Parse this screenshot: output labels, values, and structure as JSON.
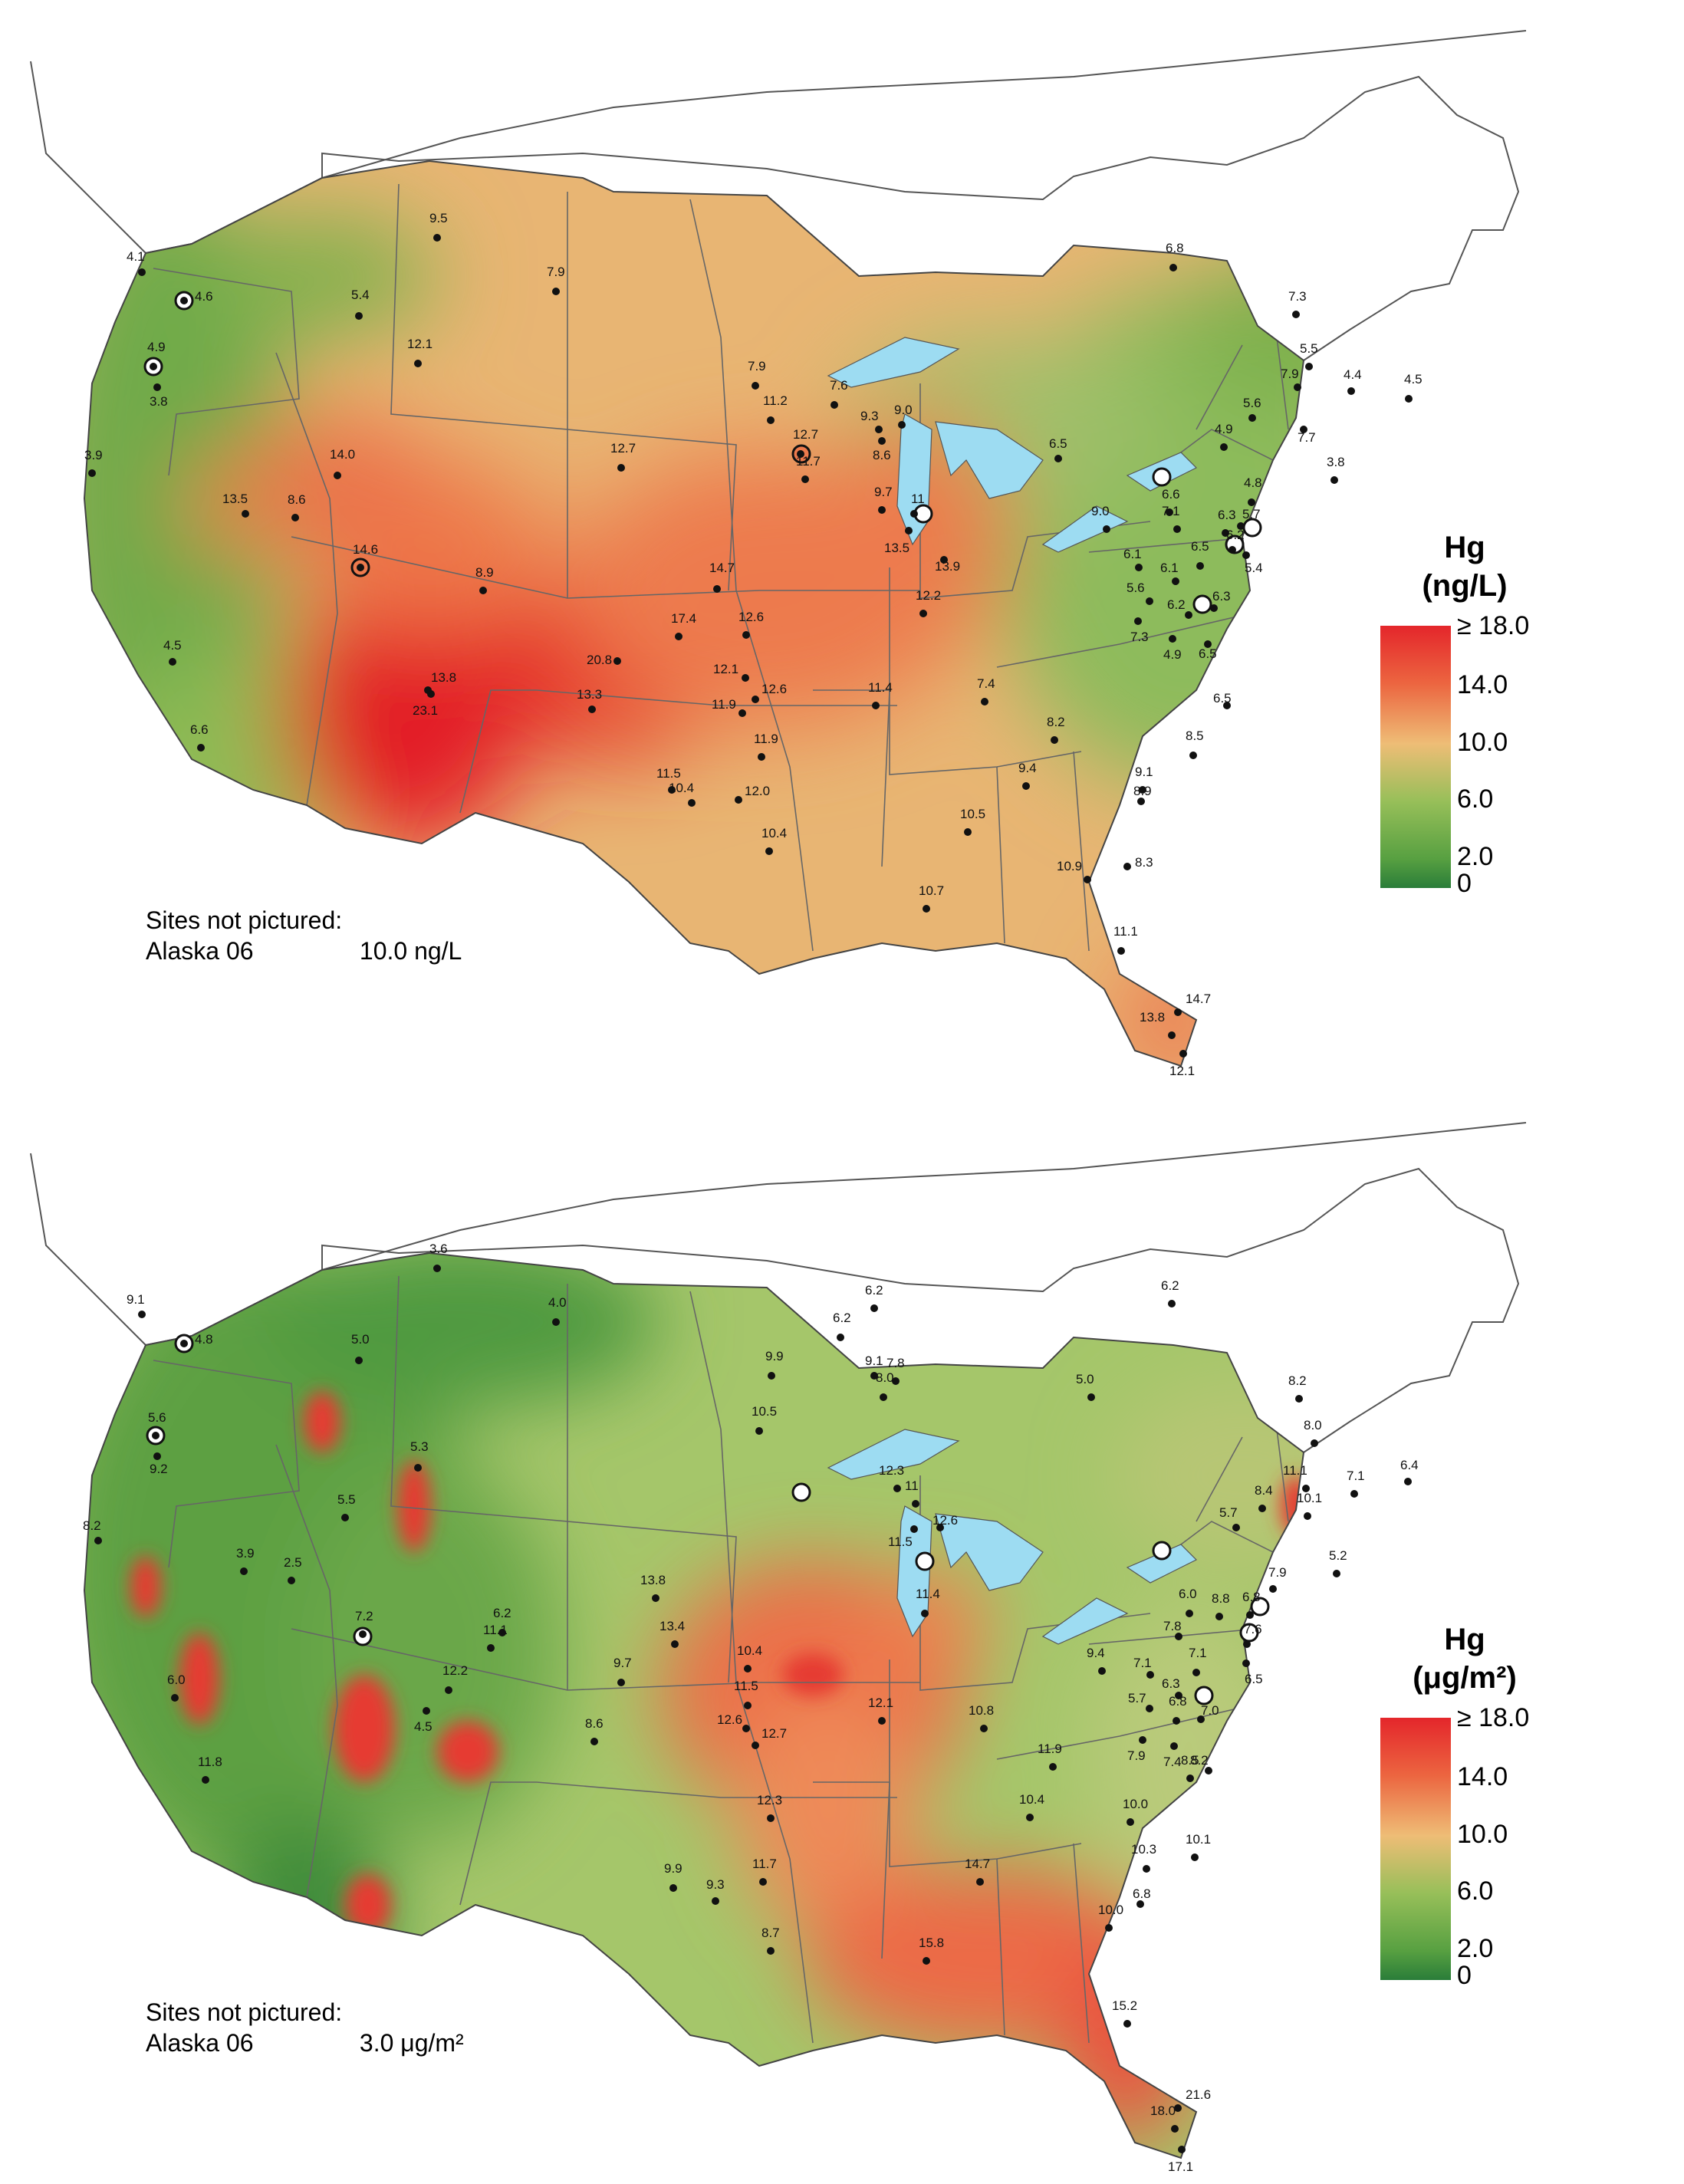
{
  "maps": [
    {
      "id": "concentration",
      "legend": {
        "title_line1": "Hg",
        "title_line2": "(ng/L)",
        "ticks": [
          "≥ 18.0",
          "14.0",
          "10.0",
          "6.0",
          "2.0",
          "0"
        ]
      },
      "not_pictured": {
        "heading": "Sites not pictured:",
        "site": "Alaska 06",
        "value": "10.0 ng/L"
      },
      "labels": [
        "4.1",
        "4.6",
        "4.9",
        "3.8",
        "3.9",
        "5.4",
        "9.5",
        "7.9",
        "12.1",
        "14.0",
        "13.5",
        "8.6",
        "14.6",
        "8.9",
        "12.7",
        "4.5",
        "6.6",
        "13.8",
        "23.1",
        "13.3",
        "20.8",
        "17.4",
        "14.7",
        "12.6",
        "12.1",
        "12.6",
        "11.9",
        "11.9",
        "11.5",
        "10.4",
        "12.0",
        "10.4",
        "7.9",
        "11.2",
        "12.7",
        "11.7",
        "7.6",
        "9.3",
        "9.0",
        "8.6",
        "9.7",
        "11",
        "13.5",
        "13.9",
        "12.2",
        "11.4",
        "7.4",
        "10.5",
        "9.4",
        "10.7",
        "8.2",
        "9.1",
        "8.9",
        "8.5",
        "8.3",
        "10.9",
        "11.1",
        "13.8",
        "14.7",
        "12.1",
        "6.5",
        "9.0",
        "6.8",
        "7.3",
        "5.5",
        "7.9",
        "4.4",
        "4.5",
        "5.6",
        "7.7",
        "4.9",
        "3.8",
        "4.8",
        "6.6",
        "7.1",
        "6.3",
        "5.7",
        "6.1",
        "6.5",
        "6.2",
        "5.4",
        "6.1",
        "5.6",
        "6.2",
        "6.3",
        "7.3",
        "4.9",
        "6.5",
        "6.5"
      ]
    },
    {
      "id": "deposition",
      "legend": {
        "title_line1": "Hg",
        "title_line2": "(μg/m²)",
        "ticks": [
          "≥ 18.0",
          "14.0",
          "10.0",
          "6.0",
          "2.0",
          "0"
        ]
      },
      "not_pictured": {
        "heading": "Sites not pictured:",
        "site": "Alaska 06",
        "value": "3.0 μg/m²"
      },
      "labels": [
        "9.1",
        "4.8",
        "5.6",
        "9.2",
        "8.2",
        "5.0",
        "3.6",
        "4.0",
        "5.3",
        "5.5",
        "3.9",
        "2.5",
        "7.2",
        "6.2",
        "6.0",
        "11.8",
        "11.1",
        "12.2",
        "4.5",
        "8.6",
        "9.7",
        "13.8",
        "13.4",
        "10.4",
        "11.5",
        "12.6",
        "12.7",
        "12.3",
        "11.7",
        "9.9",
        "9.3",
        "8.7",
        "6.2",
        "6.2",
        "9.9",
        "10.5",
        "9.1",
        "7.8",
        "8.0",
        "12.3",
        "11",
        "11.5",
        "12.6",
        "11.4",
        "12.1",
        "10.8",
        "11.9",
        "10.4",
        "14.7",
        "15.8",
        "10.0",
        "10.3",
        "6.8",
        "10.0",
        "10.1",
        "8.5",
        "15.2",
        "18.0",
        "21.6",
        "17.1",
        "5.0",
        "6.2",
        "8.2",
        "8.0",
        "11.1",
        "7.1",
        "10.1",
        "6.4",
        "5.7",
        "8.4",
        "5.2",
        "7.9",
        "6.0",
        "8.8",
        "6.8",
        "7.8",
        "7.6",
        "6.5",
        "9.4",
        "7.1",
        "6.3",
        "7.1",
        "5.7",
        "6.8",
        "7.0",
        "7.9",
        "7.4",
        "8.2"
      ]
    }
  ]
}
